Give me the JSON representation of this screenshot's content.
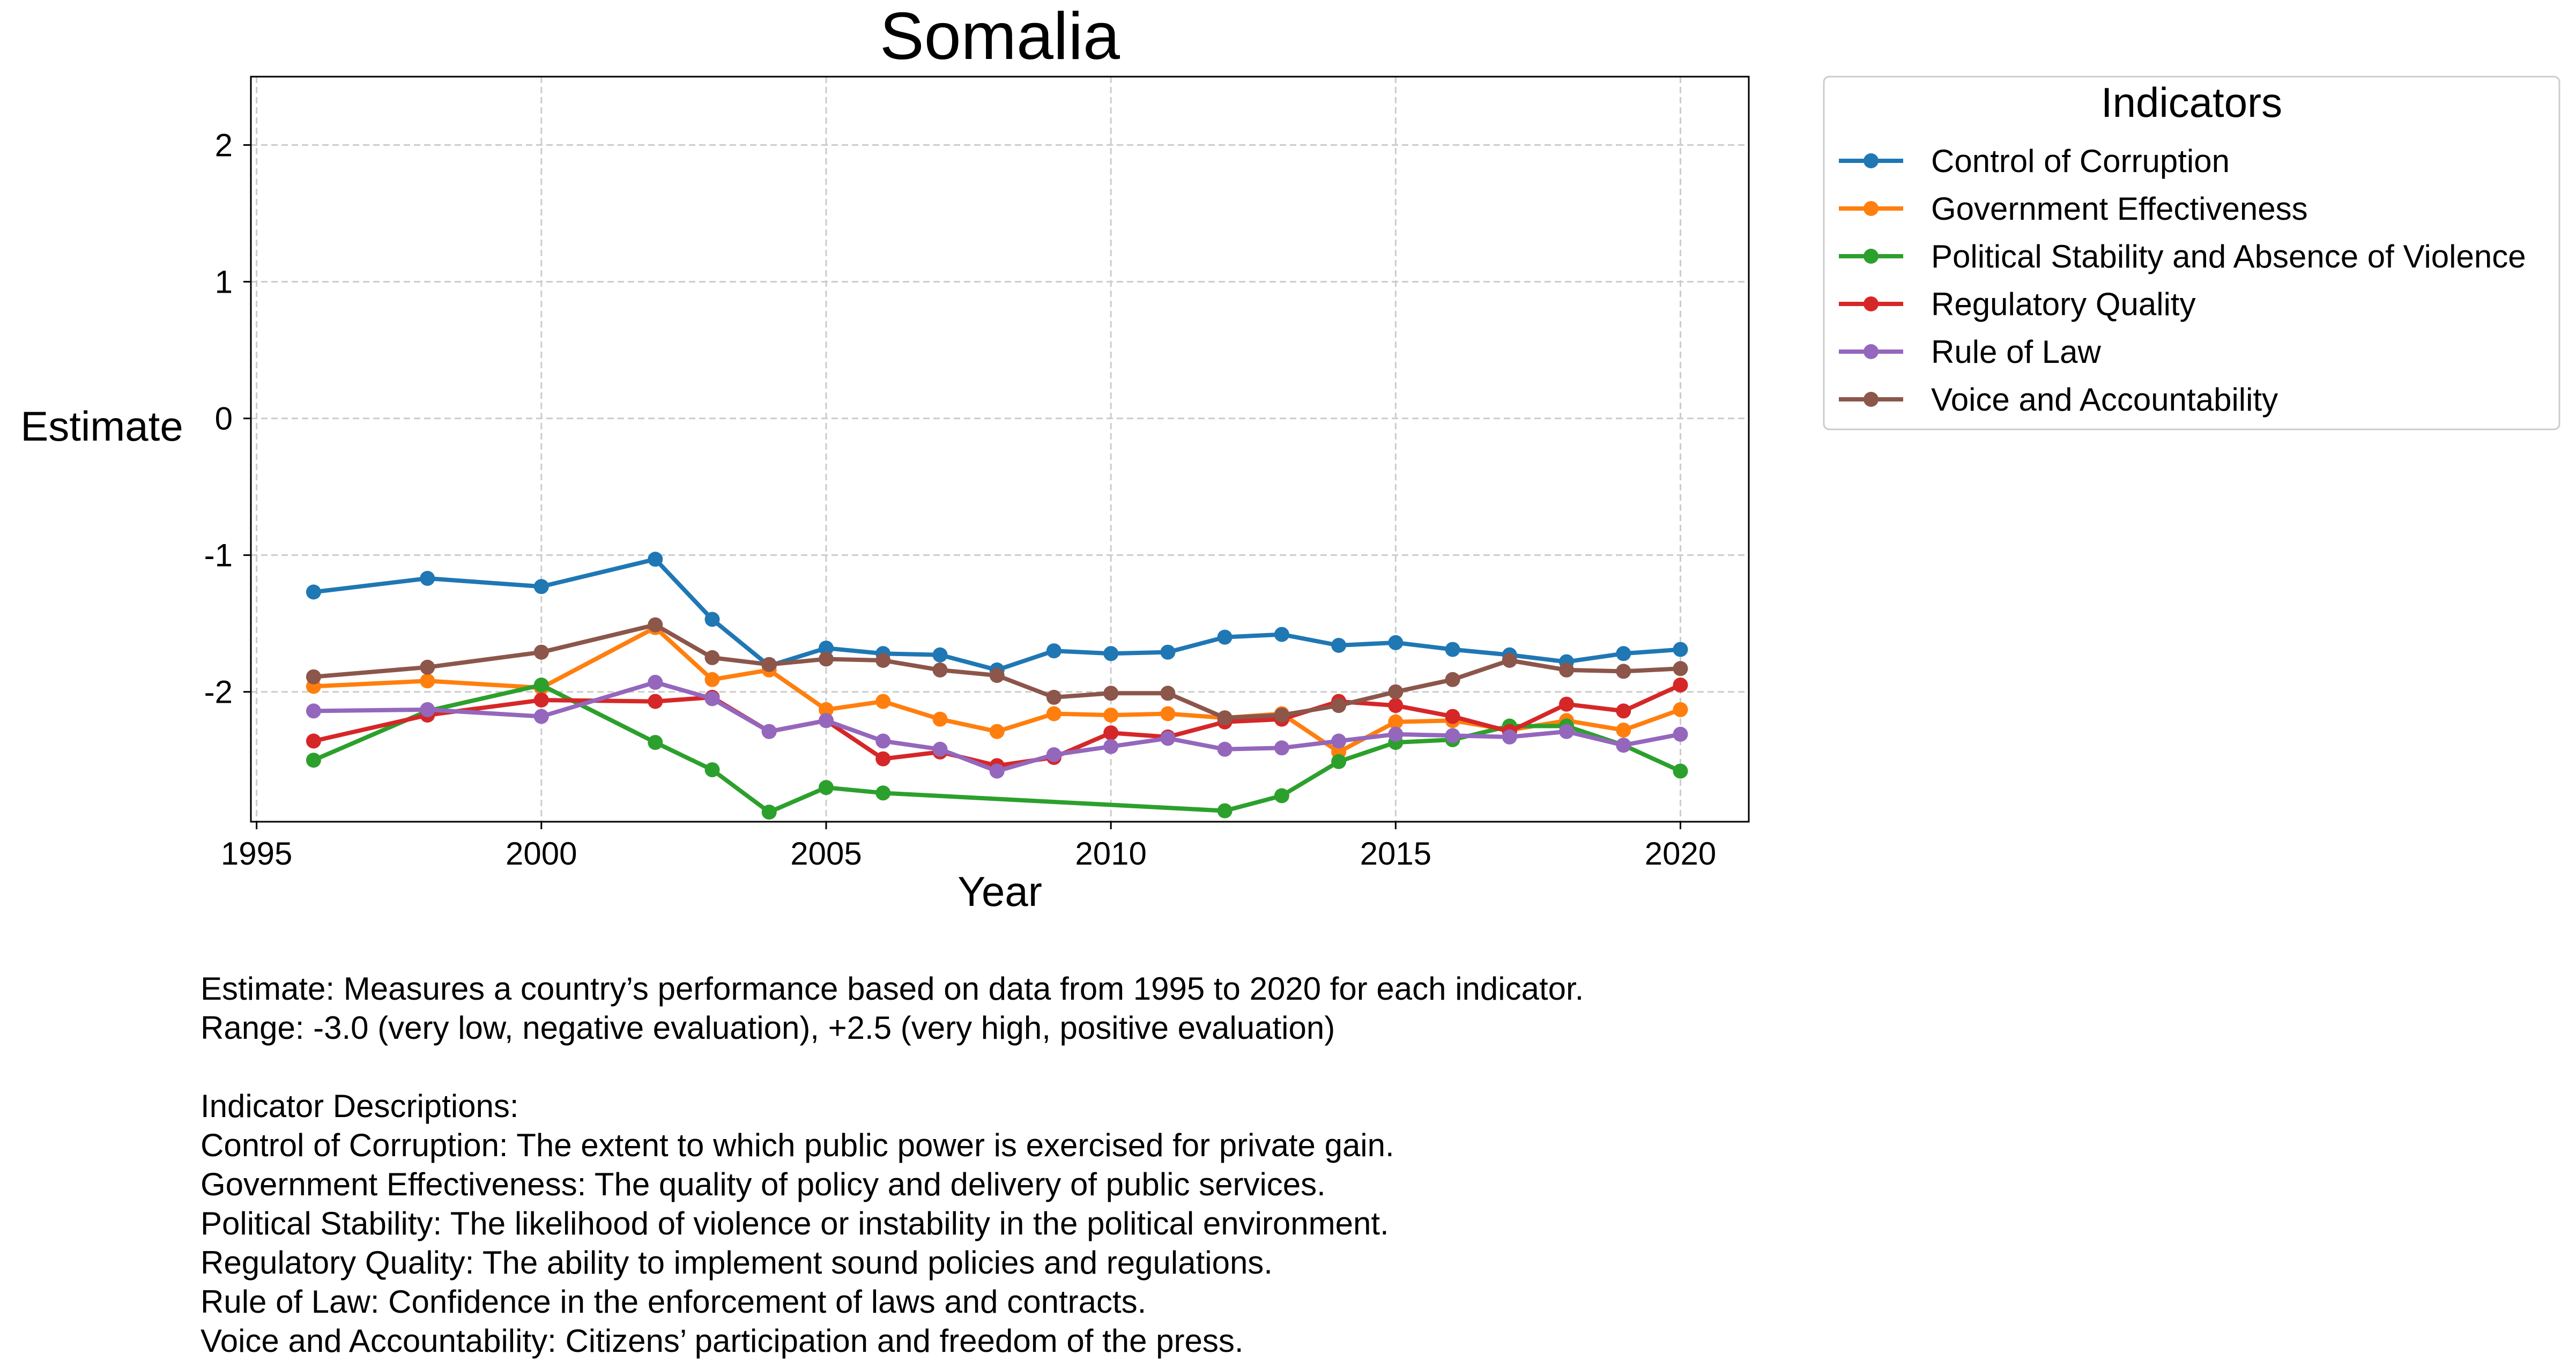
{
  "chart_data": {
    "type": "line",
    "title": "Somalia",
    "xlabel": "Year",
    "ylabel": "Estimate",
    "xlim": [
      1994.9,
      2021.2
    ],
    "ylim": [
      -2.95,
      2.5
    ],
    "xticks": [
      1995,
      2000,
      2005,
      2010,
      2015,
      2020
    ],
    "yticks": [
      2,
      1,
      0,
      -1,
      -2
    ],
    "ytick_labels": [
      "2",
      "1",
      "0",
      "-1",
      "-2"
    ],
    "grid": true,
    "grid_style": "dashed",
    "legend": {
      "title": "Indicators",
      "placement": "outside-top-right"
    },
    "series": [
      {
        "name": "Control of Corruption",
        "color": "#1f77b4",
        "x": [
          1996,
          1998,
          2000,
          2002,
          2003,
          2004,
          2005,
          2006,
          2007,
          2008,
          2009,
          2010,
          2011,
          2012,
          2013,
          2014,
          2015,
          2016,
          2017,
          2018,
          2019,
          2020
        ],
        "y": [
          -1.27,
          -1.17,
          -1.23,
          -1.03,
          -1.47,
          -1.81,
          -1.68,
          -1.72,
          -1.73,
          -1.84,
          -1.7,
          -1.72,
          -1.71,
          -1.6,
          -1.58,
          -1.66,
          -1.64,
          -1.69,
          -1.73,
          -1.78,
          -1.72,
          -1.69
        ]
      },
      {
        "name": "Government Effectiveness",
        "color": "#ff7f0e",
        "x": [
          1996,
          1998,
          2000,
          2002,
          2003,
          2004,
          2005,
          2006,
          2007,
          2008,
          2009,
          2010,
          2011,
          2012,
          2013,
          2014,
          2015,
          2016,
          2017,
          2018,
          2019,
          2020
        ],
        "y": [
          -1.96,
          -1.92,
          -1.97,
          -1.53,
          -1.91,
          -1.84,
          -2.13,
          -2.07,
          -2.2,
          -2.29,
          -2.16,
          -2.17,
          -2.16,
          -2.19,
          -2.16,
          -2.44,
          -2.22,
          -2.21,
          -2.28,
          -2.21,
          -2.28,
          -2.13
        ]
      },
      {
        "name": "Political Stability and Absence of Violence",
        "color": "#2ca02c",
        "x": [
          1996,
          1998,
          2000,
          2002,
          2003,
          2004,
          2005,
          2006,
          2012,
          2013,
          2014,
          2015,
          2016,
          2017,
          2018,
          2019,
          2020
        ],
        "y": [
          -2.5,
          -2.14,
          -1.95,
          -2.37,
          -2.57,
          -2.88,
          -2.7,
          -2.74,
          -2.87,
          -2.76,
          -2.51,
          -2.37,
          -2.35,
          -2.25,
          -2.25,
          -2.39,
          -2.58
        ]
      },
      {
        "name": "Regulatory Quality",
        "color": "#d62728",
        "x": [
          1996,
          1998,
          2000,
          2002,
          2003,
          2004,
          2005,
          2006,
          2007,
          2008,
          2009,
          2010,
          2011,
          2012,
          2013,
          2014,
          2015,
          2016,
          2017,
          2018,
          2019,
          2020
        ],
        "y": [
          -2.36,
          -2.17,
          -2.06,
          -2.07,
          -2.04,
          -2.29,
          -2.21,
          -2.49,
          -2.44,
          -2.54,
          -2.48,
          -2.3,
          -2.33,
          -2.22,
          -2.2,
          -2.07,
          -2.1,
          -2.18,
          -2.29,
          -2.09,
          -2.14,
          -1.95
        ]
      },
      {
        "name": "Rule of Law",
        "color": "#9467bd",
        "x": [
          1996,
          1998,
          2000,
          2002,
          2003,
          2004,
          2005,
          2006,
          2007,
          2008,
          2009,
          2010,
          2011,
          2012,
          2013,
          2014,
          2015,
          2016,
          2017,
          2018,
          2019,
          2020
        ],
        "y": [
          -2.14,
          -2.13,
          -2.18,
          -1.93,
          -2.05,
          -2.29,
          -2.21,
          -2.36,
          -2.42,
          -2.58,
          -2.46,
          -2.4,
          -2.34,
          -2.42,
          -2.41,
          -2.36,
          -2.31,
          -2.32,
          -2.33,
          -2.29,
          -2.39,
          -2.31
        ]
      },
      {
        "name": "Voice and Accountability",
        "color": "#8c564b",
        "x": [
          1996,
          1998,
          2000,
          2002,
          2003,
          2004,
          2005,
          2006,
          2007,
          2008,
          2009,
          2010,
          2011,
          2012,
          2013,
          2014,
          2015,
          2016,
          2017,
          2018,
          2019,
          2020
        ],
        "y": [
          -1.89,
          -1.82,
          -1.71,
          -1.51,
          -1.75,
          -1.8,
          -1.76,
          -1.77,
          -1.84,
          -1.88,
          -2.04,
          -2.01,
          -2.01,
          -2.19,
          -2.17,
          -2.1,
          -2.0,
          -1.91,
          -1.77,
          -1.84,
          -1.85,
          -1.83
        ]
      }
    ]
  },
  "notes": {
    "line1": "Estimate: Measures a country’s performance based on data from 1995 to 2020 for each indicator.",
    "line2": "Range: -3.0 (very low, negative evaluation), +2.5 (very high, positive evaluation)",
    "heading": "Indicator Descriptions:",
    "desc1": "Control of Corruption: The extent to which public power is exercised for private gain.",
    "desc2": "Government Effectiveness: The quality of policy and delivery of public services.",
    "desc3": "Political Stability: The likelihood of violence or instability in the political environment.",
    "desc4": "Regulatory Quality: The ability to implement sound policies and regulations.",
    "desc5": "Rule of Law: Confidence in the enforcement of laws and contracts.",
    "desc6": "Voice and Accountability: Citizens’ participation and freedom of the press."
  }
}
